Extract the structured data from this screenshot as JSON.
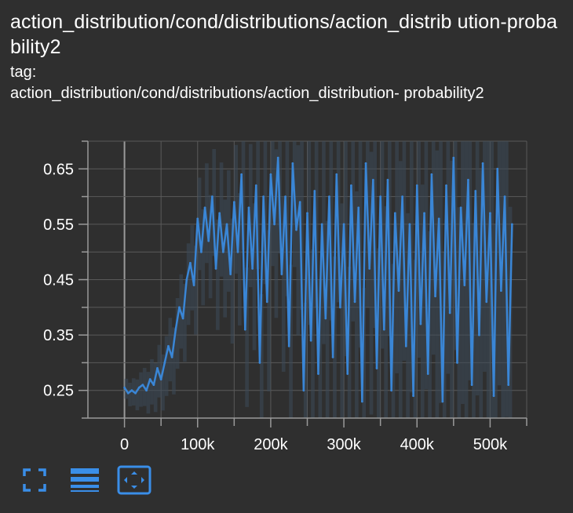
{
  "header": {
    "title": "action_distribution/cond/distributions/action_distrib ution-probability2",
    "tag_label": "tag:",
    "tag_value": "action_distribution/cond/distributions/action_distribution- probability2"
  },
  "colors": {
    "background": "#2f2f2f",
    "line": "#3a86d6",
    "band": "#3c4a5a",
    "grid": "#5a5a5a",
    "text": "#ffffff",
    "icon": "#3a8ee8"
  },
  "toolbar": {
    "icons": [
      "fullscreen-icon",
      "toggle-log-scale-icon",
      "fit-domain-icon"
    ]
  },
  "chart_data": {
    "type": "line",
    "title": "",
    "xlabel": "",
    "ylabel": "",
    "xlim": [
      -50000,
      550000
    ],
    "ylim": [
      0.2,
      0.7
    ],
    "x_ticks": [
      0,
      100000,
      200000,
      300000,
      400000,
      500000
    ],
    "x_tick_labels": [
      "0",
      "100k",
      "200k",
      "300k",
      "400k",
      "500k"
    ],
    "y_ticks": [
      0.25,
      0.35,
      0.45,
      0.55,
      0.65
    ],
    "y_tick_labels": [
      "0.25",
      "0.35",
      "0.45",
      "0.55",
      "0.65"
    ],
    "grid": true,
    "series": [
      {
        "x": [
          0,
          5000,
          10000,
          15000,
          20000,
          25000,
          30000,
          35000,
          40000,
          45000,
          50000,
          55000,
          60000,
          65000,
          70000,
          75000,
          80000,
          85000,
          90000,
          95000,
          100000,
          105000,
          110000,
          115000,
          120000,
          125000,
          130000,
          135000,
          140000,
          145000,
          150000,
          155000,
          160000,
          165000,
          170000,
          175000,
          180000,
          185000,
          190000,
          195000,
          200000,
          205000,
          210000,
          215000,
          220000,
          225000,
          230000,
          235000,
          240000,
          245000,
          250000,
          255000,
          260000,
          265000,
          270000,
          275000,
          280000,
          285000,
          290000,
          295000,
          300000,
          305000,
          310000,
          315000,
          320000,
          325000,
          330000,
          335000,
          340000,
          345000,
          350000,
          355000,
          360000,
          365000,
          370000,
          375000,
          380000,
          385000,
          390000,
          395000,
          400000,
          405000,
          410000,
          415000,
          420000,
          425000,
          430000,
          435000,
          440000,
          445000,
          450000,
          455000,
          460000,
          465000,
          470000,
          475000,
          480000,
          485000,
          490000,
          495000,
          500000,
          505000,
          510000,
          515000,
          520000,
          525000,
          530000
        ],
        "y": [
          0.255,
          0.245,
          0.25,
          0.245,
          0.255,
          0.26,
          0.25,
          0.27,
          0.26,
          0.29,
          0.27,
          0.3,
          0.33,
          0.31,
          0.36,
          0.4,
          0.38,
          0.45,
          0.48,
          0.44,
          0.56,
          0.5,
          0.58,
          0.52,
          0.6,
          0.47,
          0.57,
          0.5,
          0.55,
          0.46,
          0.59,
          0.5,
          0.64,
          0.36,
          0.58,
          0.47,
          0.62,
          0.3,
          0.6,
          0.41,
          0.64,
          0.55,
          0.67,
          0.46,
          0.6,
          0.33,
          0.66,
          0.54,
          0.59,
          0.25,
          0.57,
          0.34,
          0.61,
          0.28,
          0.55,
          0.38,
          0.6,
          0.31,
          0.64,
          0.4,
          0.55,
          0.28,
          0.62,
          0.41,
          0.58,
          0.23,
          0.66,
          0.47,
          0.63,
          0.29,
          0.6,
          0.36,
          0.63,
          0.25,
          0.57,
          0.43,
          0.6,
          0.33,
          0.55,
          0.24,
          0.62,
          0.37,
          0.57,
          0.28,
          0.64,
          0.42,
          0.56,
          0.23,
          0.62,
          0.39,
          0.67,
          0.3,
          0.58,
          0.44,
          0.63,
          0.26,
          0.61,
          0.35,
          0.66,
          0.41,
          0.57,
          0.24,
          0.65,
          0.43,
          0.6,
          0.26,
          0.55
        ]
      }
    ]
  }
}
